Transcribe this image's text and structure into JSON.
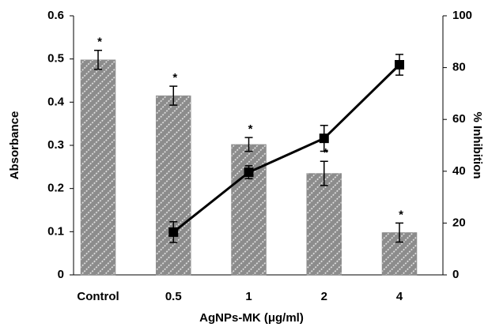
{
  "chart_data": {
    "type": "bar",
    "xlabel": "AgNPs-MK (μg/ml)",
    "ylabel": "Absorbance",
    "y2label": "% Inhibition",
    "categories": [
      "Control",
      "0.5",
      "1",
      "2",
      "4"
    ],
    "series": [
      {
        "values": [
          0.498,
          0.415,
          0.302,
          0.235,
          0.098
        ],
        "errors": [
          0.022,
          0.022,
          0.016,
          0.028,
          0.022
        ],
        "color": "#8c8c8c",
        "value_labels": [
          "*",
          "*",
          "*",
          "*",
          "*"
        ]
      },
      {
        "type": "line",
        "axis": "y2",
        "values": [
          null,
          16.5,
          39.6,
          52.7,
          81.1
        ],
        "errors": [
          null,
          4,
          2.5,
          5,
          4
        ],
        "color": "#000000"
      }
    ],
    "ylim": [
      0,
      0.6
    ],
    "yticks": [
      0,
      0.1,
      0.2,
      0.3,
      0.4,
      0.5,
      0.6
    ],
    "y2lim": [
      0,
      100
    ],
    "y2ticks": [
      0,
      20,
      40,
      60,
      80,
      100
    ]
  }
}
